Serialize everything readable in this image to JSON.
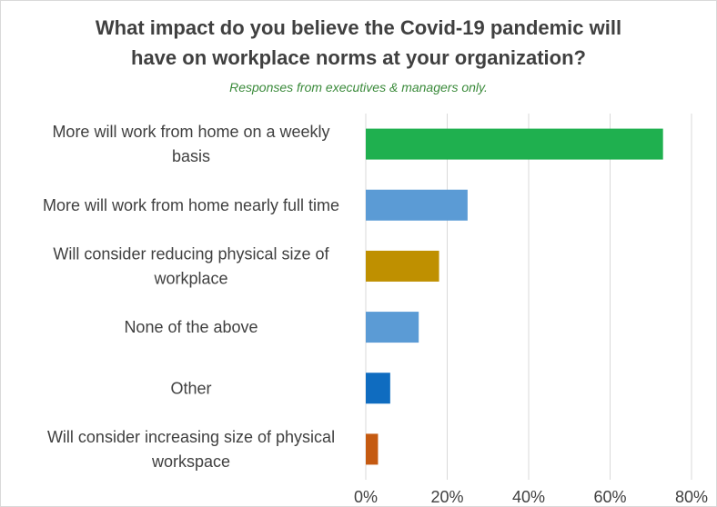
{
  "chart_data": {
    "type": "bar",
    "orientation": "horizontal",
    "title_lines": [
      "What impact do you believe the Covid-19 pandemic will",
      "have on workplace norms at your organization?"
    ],
    "subtitle": "Responses from executives & managers only.",
    "categories": [
      [
        "More will work from home on a weekly",
        "basis"
      ],
      [
        "More will work from home nearly full time"
      ],
      [
        "Will consider reducing physical size of",
        "workplace"
      ],
      [
        "None of the above"
      ],
      [
        "Other"
      ],
      [
        "Will consider increasing size of physical",
        "workspace"
      ]
    ],
    "values": [
      73,
      25,
      18,
      13,
      6,
      3
    ],
    "colors": [
      "#1fb04f",
      "#5b9bd5",
      "#bf9000",
      "#5b9bd5",
      "#0f6cc0",
      "#c55a11"
    ],
    "xlim": [
      0,
      80
    ],
    "xticks": [
      "0%",
      "20%",
      "40%",
      "60%",
      "80%"
    ],
    "grid": true
  }
}
